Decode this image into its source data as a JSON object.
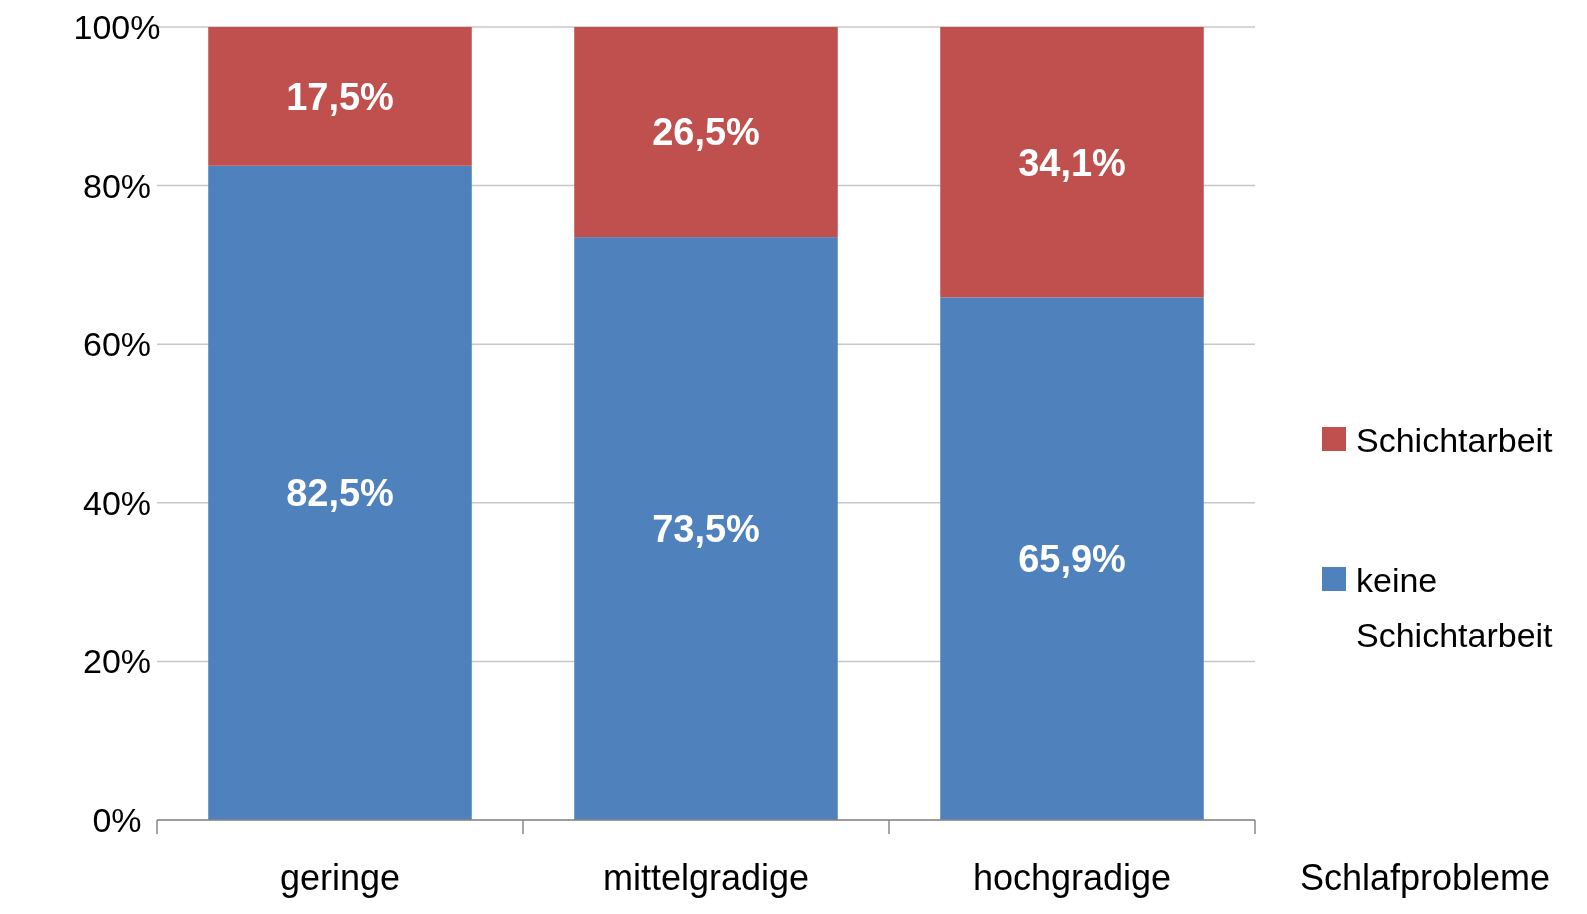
{
  "chart_data": {
    "type": "bar",
    "stacked": true,
    "xlabel": "Schlafprobleme",
    "categories": [
      "geringe",
      "mittelgradige",
      "hochgradige"
    ],
    "series": [
      {
        "name": "keine Schichtarbeit",
        "color": "#4f81bd",
        "values": [
          82.5,
          73.5,
          65.9
        ],
        "value_labels": [
          "82,5%",
          "73,5%",
          "65,9%"
        ]
      },
      {
        "name": "Schichtarbeit",
        "color": "#c0504d",
        "values": [
          17.5,
          26.5,
          34.1
        ],
        "value_labels": [
          "17,5%",
          "26,5%",
          "34,1%"
        ]
      }
    ],
    "ylim": [
      0,
      100
    ],
    "yticks": [
      {
        "value": 0,
        "label": "0%"
      },
      {
        "value": 20,
        "label": "20%"
      },
      {
        "value": 40,
        "label": "40%"
      },
      {
        "value": 60,
        "label": "60%"
      },
      {
        "value": 80,
        "label": "80%"
      },
      {
        "value": 100,
        "label": "100%"
      }
    ],
    "grid": "y",
    "legend": "right"
  }
}
